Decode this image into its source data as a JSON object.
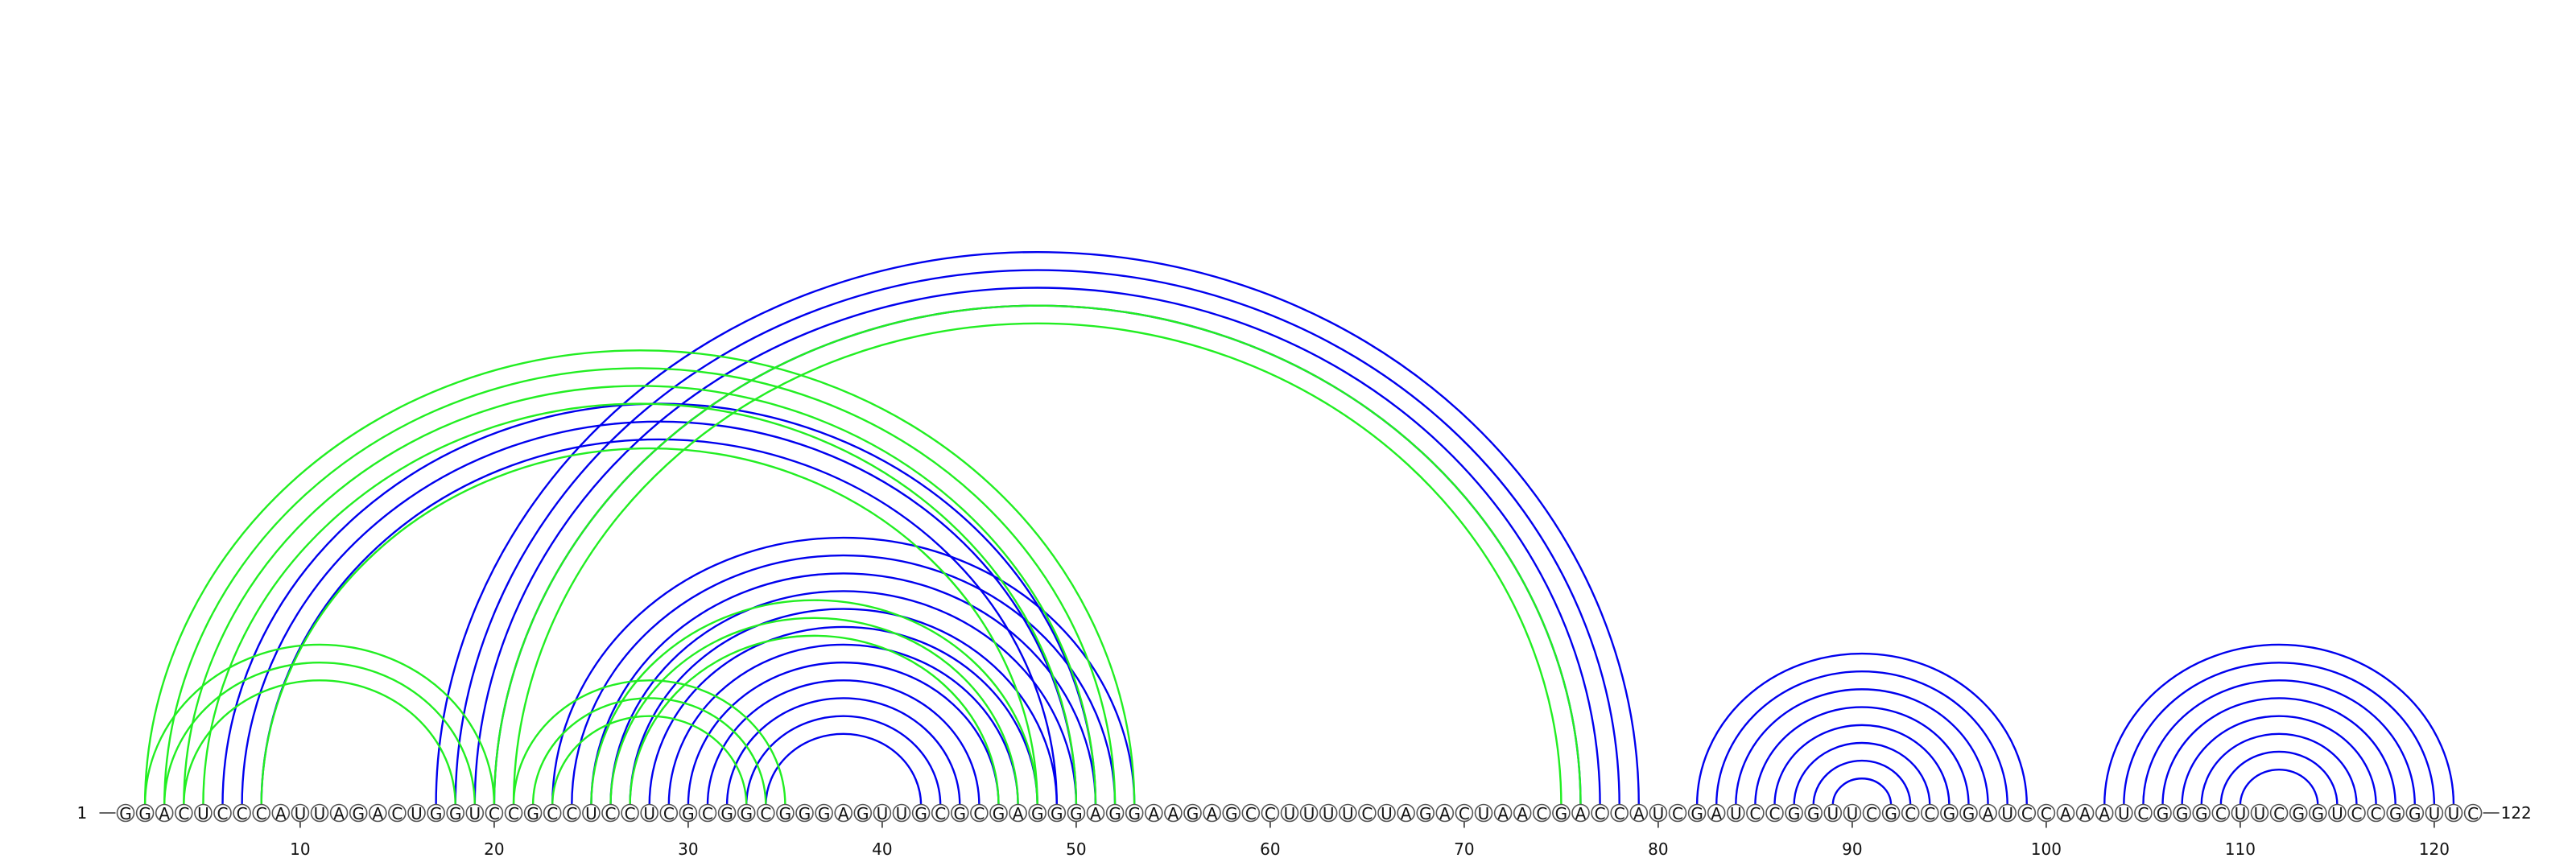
{
  "sequence": "GGACUCCCAUUAGACUGGUCCGCCUCCUCGCGGCGGGAGUUGCGCGAGGGAGGAAGAGCCUUUUCUAGACUAACGACCAUCGAUCCGGUUCGCCGGAUCCAAAUCGGGCUUCGGUCCGGUUC",
  "start_label": "1",
  "end_label": "122",
  "ticks": [
    10,
    20,
    30,
    40,
    50,
    60,
    70,
    80,
    90,
    100,
    110,
    120
  ],
  "colors": {
    "blue": "#0000ee",
    "green": "#22ee22"
  },
  "chart_data": {
    "type": "arc-diagram",
    "length": 122,
    "structures": [
      {
        "color": "blue",
        "pairs": [
          [
            17,
            79
          ],
          [
            18,
            78
          ],
          [
            19,
            77
          ],
          [
            20,
            76
          ],
          [
            6,
            51
          ],
          [
            7,
            50
          ],
          [
            8,
            49
          ],
          [
            23,
            53
          ],
          [
            24,
            52
          ],
          [
            25,
            51
          ],
          [
            26,
            50
          ],
          [
            27,
            49
          ],
          [
            28,
            48
          ],
          [
            29,
            47
          ],
          [
            30,
            46
          ],
          [
            31,
            45
          ],
          [
            32,
            44
          ],
          [
            33,
            43
          ],
          [
            34,
            42
          ],
          [
            82,
            99
          ],
          [
            83,
            98
          ],
          [
            84,
            97
          ],
          [
            85,
            96
          ],
          [
            86,
            95
          ],
          [
            87,
            94
          ],
          [
            88,
            93
          ],
          [
            89,
            92
          ],
          [
            103,
            121
          ],
          [
            104,
            120
          ],
          [
            105,
            119
          ],
          [
            106,
            118
          ],
          [
            107,
            117
          ],
          [
            108,
            116
          ],
          [
            109,
            115
          ],
          [
            110,
            114
          ]
        ]
      },
      {
        "color": "green",
        "pairs": [
          [
            2,
            53
          ],
          [
            3,
            52
          ],
          [
            4,
            51
          ],
          [
            5,
            50
          ],
          [
            8,
            48
          ],
          [
            2,
            20
          ],
          [
            3,
            19
          ],
          [
            4,
            18
          ],
          [
            20,
            76
          ],
          [
            21,
            75
          ],
          [
            21,
            35
          ],
          [
            22,
            34
          ],
          [
            23,
            33
          ],
          [
            25,
            48
          ],
          [
            26,
            47
          ],
          [
            27,
            46
          ]
        ]
      }
    ]
  }
}
